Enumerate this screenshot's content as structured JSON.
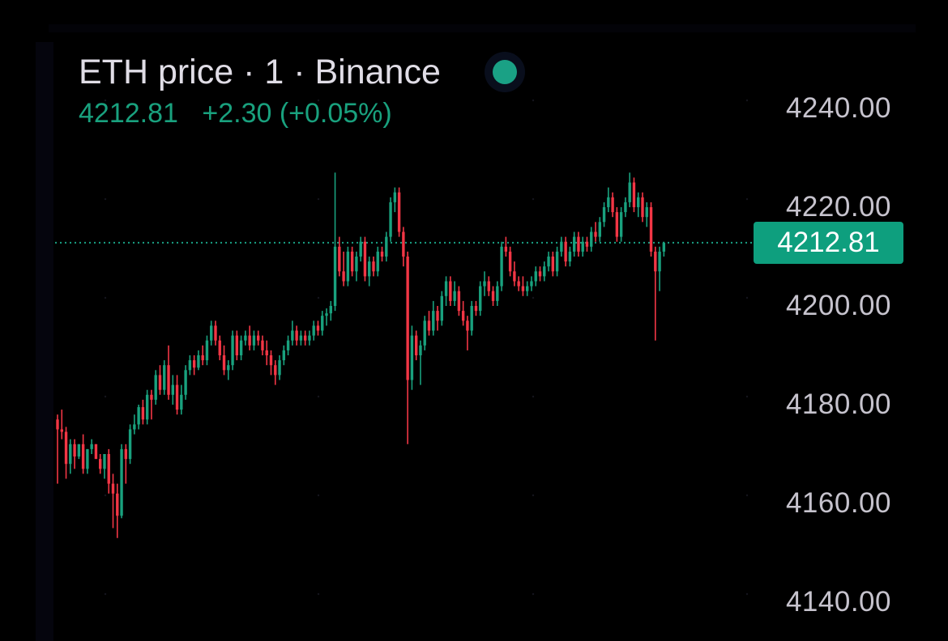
{
  "legend": {
    "title": "ETH price · 1 · Binance",
    "last_price": "4212.81",
    "change": "+2.30 (+0.05%)"
  },
  "colors": {
    "up": "#19a17e",
    "down": "#f23645",
    "background": "#000000",
    "axis_text": "#c6c3cd",
    "price_tag": "#0e9f7e"
  },
  "price_tag": {
    "label": "4212.81",
    "value": 4212.81
  },
  "chart_data": {
    "type": "candlestick",
    "title": "ETH price · 1 · Binance",
    "xlabel": "",
    "ylabel": "",
    "ylim": [
      4135,
      4248
    ],
    "y_ticks": [
      4240,
      4220,
      4200,
      4180,
      4160,
      4140
    ],
    "y_tick_labels": [
      "4240.00",
      "4220.00",
      "4200.00",
      "4180.00",
      "4160.00",
      "4140.00"
    ],
    "current_price": 4212.81,
    "price_line": "dotted",
    "grid": false,
    "candles": [
      [
        4177.0,
        4178.0,
        4164.0,
        4175.0
      ],
      [
        4175.0,
        4179.0,
        4173.0,
        4174.5
      ],
      [
        4174.5,
        4175.5,
        4165.0,
        4168.0
      ],
      [
        4168.0,
        4173.0,
        4166.0,
        4172.0
      ],
      [
        4172.0,
        4173.0,
        4167.0,
        4169.5
      ],
      [
        4169.5,
        4172.0,
        4169.0,
        4172.0
      ],
      [
        4172.0,
        4174.0,
        4166.0,
        4167.0
      ],
      [
        4167.0,
        4171.0,
        4166.0,
        4171.0
      ],
      [
        4171.0,
        4173.0,
        4170.0,
        4172.0
      ],
      [
        4172.0,
        4172.0,
        4169.0,
        4169.0
      ],
      [
        4169.0,
        4170.0,
        4166.0,
        4167.0
      ],
      [
        4167.0,
        4170.0,
        4165.0,
        4170.0
      ],
      [
        4170.0,
        4171.0,
        4162.0,
        4164.0
      ],
      [
        4164.0,
        4166.0,
        4155.0,
        4162.0
      ],
      [
        4162.0,
        4164.0,
        4153.0,
        4157.5
      ],
      [
        4157.5,
        4172.0,
        4157.0,
        4171.0
      ],
      [
        4171.0,
        4172.0,
        4164.0,
        4169.0
      ],
      [
        4169.0,
        4176.0,
        4168.0,
        4175.0
      ],
      [
        4175.0,
        4178.0,
        4174.0,
        4176.0
      ],
      [
        4176.0,
        4180.0,
        4175.0,
        4179.5
      ],
      [
        4179.5,
        4181.0,
        4176.0,
        4177.0
      ],
      [
        4177.0,
        4183.0,
        4176.0,
        4182.0
      ],
      [
        4182.0,
        4183.0,
        4177.0,
        4181.0
      ],
      [
        4181.0,
        4187.0,
        4180.0,
        4186.0
      ],
      [
        4186.0,
        4188.0,
        4182.0,
        4183.0
      ],
      [
        4183.0,
        4189.0,
        4182.0,
        4188.0
      ],
      [
        4188.0,
        4192.0,
        4181.0,
        4182.0
      ],
      [
        4182.0,
        4186.0,
        4180.0,
        4184.0
      ],
      [
        4184.0,
        4186.0,
        4178.0,
        4179.0
      ],
      [
        4179.0,
        4184.0,
        4178.0,
        4182.0
      ],
      [
        4182.0,
        4188.0,
        4181.0,
        4187.0
      ],
      [
        4187.0,
        4190.0,
        4186.0,
        4189.0
      ],
      [
        4189.0,
        4190.0,
        4186.0,
        4187.5
      ],
      [
        4187.5,
        4191.0,
        4187.0,
        4190.0
      ],
      [
        4190.0,
        4192.0,
        4188.0,
        4189.0
      ],
      [
        4189.0,
        4194.0,
        4188.0,
        4193.0
      ],
      [
        4193.0,
        4197.0,
        4192.0,
        4196.0
      ],
      [
        4196.0,
        4197.0,
        4192.0,
        4193.0
      ],
      [
        4193.0,
        4194.0,
        4189.0,
        4190.0
      ],
      [
        4190.0,
        4192.0,
        4186.0,
        4187.0
      ],
      [
        4187.0,
        4189.0,
        4185.0,
        4188.0
      ],
      [
        4188.0,
        4195.0,
        4187.0,
        4194.0
      ],
      [
        4194.0,
        4195.0,
        4189.0,
        4190.0
      ],
      [
        4190.0,
        4194.0,
        4189.0,
        4193.0
      ],
      [
        4193.0,
        4195.0,
        4192.0,
        4194.0
      ],
      [
        4194.0,
        4196.0,
        4191.0,
        4192.0
      ],
      [
        4192.0,
        4195.0,
        4191.0,
        4194.0
      ],
      [
        4194.0,
        4195.0,
        4192.0,
        4193.0
      ],
      [
        4193.0,
        4194.0,
        4190.0,
        4191.0
      ],
      [
        4191.0,
        4193.0,
        4188.0,
        4190.0
      ],
      [
        4190.0,
        4191.0,
        4186.0,
        4188.0
      ],
      [
        4188.0,
        4189.0,
        4184.0,
        4186.0
      ],
      [
        4186.0,
        4190.0,
        4185.0,
        4189.0
      ],
      [
        4189.0,
        4192.0,
        4188.0,
        4191.0
      ],
      [
        4191.0,
        4194.0,
        4190.0,
        4193.0
      ],
      [
        4193.0,
        4197.0,
        4192.0,
        4195.0
      ],
      [
        4195.0,
        4196.0,
        4192.0,
        4193.0
      ],
      [
        4193.0,
        4195.0,
        4192.0,
        4194.0
      ],
      [
        4194.0,
        4195.0,
        4192.0,
        4193.0
      ],
      [
        4193.0,
        4195.0,
        4192.0,
        4194.0
      ],
      [
        4194.0,
        4197.0,
        4193.0,
        4196.0
      ],
      [
        4196.0,
        4197.0,
        4194.0,
        4195.0
      ],
      [
        4195.0,
        4199.0,
        4194.0,
        4198.0
      ],
      [
        4198.0,
        4199.5,
        4196.0,
        4198.5
      ],
      [
        4198.5,
        4201.0,
        4197.0,
        4200.0
      ],
      [
        4200.0,
        4227.0,
        4199.0,
        4212.0
      ],
      [
        4212.0,
        4214.0,
        4206.0,
        4207.0
      ],
      [
        4207.0,
        4211.0,
        4204.0,
        4205.0
      ],
      [
        4205.0,
        4212.0,
        4204.0,
        4211.0
      ],
      [
        4211.0,
        4212.0,
        4206.0,
        4207.0
      ],
      [
        4207.0,
        4211.0,
        4205.0,
        4210.0
      ],
      [
        4210.0,
        4214.0,
        4209.0,
        4213.0
      ],
      [
        4213.0,
        4214.0,
        4205.0,
        4206.0
      ],
      [
        4206.0,
        4210.0,
        4204.0,
        4209.0
      ],
      [
        4209.0,
        4210.0,
        4206.0,
        4207.0
      ],
      [
        4207.0,
        4212.0,
        4206.0,
        4211.0
      ],
      [
        4211.0,
        4212.0,
        4209.0,
        4210.0
      ],
      [
        4210.0,
        4215.0,
        4209.0,
        4214.0
      ],
      [
        4214.0,
        4222.0,
        4213.0,
        4221.0
      ],
      [
        4221.0,
        4224.0,
        4219.0,
        4223.0
      ],
      [
        4223.0,
        4224.0,
        4214.0,
        4215.0
      ],
      [
        4215.0,
        4216.0,
        4208.0,
        4210.0
      ],
      [
        4210.0,
        4211.0,
        4172.0,
        4185.0
      ],
      [
        4185.0,
        4196.0,
        4183.0,
        4194.0
      ],
      [
        4194.0,
        4195.0,
        4189.0,
        4190.0
      ],
      [
        4190.0,
        4193.0,
        4184.0,
        4192.0
      ],
      [
        4192.0,
        4198.0,
        4191.0,
        4197.0
      ],
      [
        4197.0,
        4199.0,
        4194.0,
        4195.0
      ],
      [
        4195.0,
        4201.0,
        4194.0,
        4199.0
      ],
      [
        4199.0,
        4200.0,
        4195.0,
        4197.0
      ],
      [
        4197.0,
        4203.0,
        4196.0,
        4202.0
      ],
      [
        4202.0,
        4206.0,
        4200.0,
        4205.0
      ],
      [
        4205.0,
        4206.0,
        4200.0,
        4201.0
      ],
      [
        4201.0,
        4205.0,
        4200.0,
        4203.0
      ],
      [
        4203.0,
        4204.0,
        4198.0,
        4199.0
      ],
      [
        4199.0,
        4201.0,
        4196.0,
        4197.0
      ],
      [
        4197.0,
        4198.0,
        4191.0,
        4195.0
      ],
      [
        4195.0,
        4201.0,
        4194.0,
        4200.0
      ],
      [
        4200.0,
        4201.0,
        4198.0,
        4199.0
      ],
      [
        4199.0,
        4205.0,
        4198.0,
        4204.0
      ],
      [
        4204.0,
        4207.0,
        4202.0,
        4205.0
      ],
      [
        4205.0,
        4206.0,
        4202.0,
        4203.0
      ],
      [
        4203.0,
        4204.0,
        4200.0,
        4201.0
      ],
      [
        4201.0,
        4205.0,
        4200.0,
        4204.0
      ],
      [
        4204.0,
        4213.0,
        4203.0,
        4212.0
      ],
      [
        4212.0,
        4214.0,
        4210.0,
        4211.0
      ],
      [
        4211.0,
        4212.0,
        4206.0,
        4207.0
      ],
      [
        4207.0,
        4209.0,
        4204.0,
        4205.0
      ],
      [
        4205.0,
        4206.0,
        4203.0,
        4204.0
      ],
      [
        4204.0,
        4206.0,
        4202.0,
        4203.0
      ],
      [
        4203.0,
        4205.0,
        4202.0,
        4204.0
      ],
      [
        4204.0,
        4206.0,
        4203.0,
        4205.0
      ],
      [
        4205.0,
        4208.0,
        4204.0,
        4207.0
      ],
      [
        4207.0,
        4208.0,
        4205.0,
        4206.0
      ],
      [
        4206.0,
        4209.0,
        4205.0,
        4208.0
      ],
      [
        4208.0,
        4211.0,
        4207.0,
        4210.0
      ],
      [
        4210.0,
        4211.0,
        4206.0,
        4207.0
      ],
      [
        4207.0,
        4212.0,
        4206.0,
        4211.0
      ],
      [
        4211.0,
        4214.0,
        4210.0,
        4213.0
      ],
      [
        4213.0,
        4214.0,
        4208.0,
        4209.0
      ],
      [
        4209.0,
        4212.0,
        4208.0,
        4211.0
      ],
      [
        4211.0,
        4215.0,
        4210.0,
        4214.0
      ],
      [
        4214.0,
        4215.0,
        4210.0,
        4211.0
      ],
      [
        4211.0,
        4214.0,
        4210.0,
        4213.0
      ],
      [
        4213.0,
        4214.0,
        4211.0,
        4212.0
      ],
      [
        4212.0,
        4216.0,
        4211.0,
        4215.0
      ],
      [
        4215.0,
        4217.0,
        4213.0,
        4214.0
      ],
      [
        4214.0,
        4218.0,
        4213.0,
        4217.0
      ],
      [
        4217.0,
        4221.0,
        4216.0,
        4220.0
      ],
      [
        4220.0,
        4224.0,
        4219.0,
        4222.0
      ],
      [
        4222.0,
        4223.0,
        4218.0,
        4219.0
      ],
      [
        4219.0,
        4220.0,
        4213.0,
        4214.0
      ],
      [
        4214.0,
        4220.0,
        4213.0,
        4219.0
      ],
      [
        4219.0,
        4222.0,
        4218.0,
        4221.0
      ],
      [
        4221.0,
        4227.0,
        4220.0,
        4225.0
      ],
      [
        4225.0,
        4226.0,
        4219.0,
        4220.0
      ],
      [
        4220.0,
        4223.0,
        4218.0,
        4222.0
      ],
      [
        4222.0,
        4223.0,
        4217.0,
        4218.0
      ],
      [
        4218.0,
        4221.0,
        4216.0,
        4220.0
      ],
      [
        4220.0,
        4221.0,
        4210.0,
        4211.0
      ],
      [
        4211.0,
        4212.0,
        4193.0,
        4207.0
      ],
      [
        4207.0,
        4212.0,
        4203.0,
        4211.0
      ],
      [
        4211.0,
        4213.0,
        4210.0,
        4212.81
      ]
    ]
  }
}
